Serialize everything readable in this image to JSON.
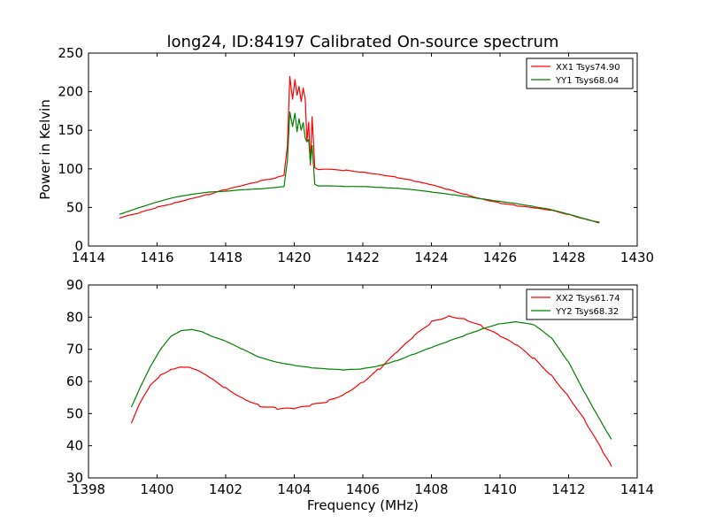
{
  "title": "long24, ID:84197 Calibrated On-source spectrum",
  "chart_data": [
    {
      "type": "line",
      "title": "long24, ID:84197 Calibrated On-source spectrum",
      "xlabel": "",
      "ylabel": "Power in Kelvin",
      "xlim": [
        1414,
        1430
      ],
      "ylim": [
        0,
        250
      ],
      "xticks": [
        1414,
        1416,
        1418,
        1420,
        1422,
        1424,
        1426,
        1428,
        1430
      ],
      "yticks": [
        0,
        50,
        100,
        150,
        200,
        250
      ],
      "grid": false,
      "legend": "top-right",
      "series": [
        {
          "name": "XX1 Tsys74.90",
          "color": "#ff0000",
          "x": [
            1414.9,
            1415.5,
            1416,
            1416.5,
            1417,
            1417.5,
            1418,
            1418.5,
            1419,
            1419.5,
            1419.7,
            1419.8,
            1419.87,
            1419.95,
            1420.02,
            1420.08,
            1420.14,
            1420.2,
            1420.26,
            1420.32,
            1420.37,
            1420.42,
            1420.47,
            1420.52,
            1420.6,
            1420.7,
            1421,
            1421.5,
            1422,
            1422.5,
            1423,
            1423.5,
            1424,
            1424.5,
            1425,
            1425.5,
            1426,
            1426.5,
            1427,
            1427.5,
            1428,
            1428.5,
            1428.9
          ],
          "y": [
            36,
            43,
            50,
            56,
            62,
            67,
            73,
            78,
            84,
            89,
            92,
            130,
            220,
            190,
            215,
            195,
            207,
            188,
            205,
            190,
            135,
            160,
            105,
            168,
            102,
            99,
            99,
            98,
            96,
            93,
            89,
            84,
            79,
            73,
            67,
            61,
            56,
            52,
            49,
            46,
            41,
            35,
            31
          ]
        },
        {
          "name": "YY1 Tsys68.04",
          "color": "#008000",
          "x": [
            1414.9,
            1415.5,
            1416,
            1416.5,
            1417,
            1417.5,
            1418,
            1418.5,
            1419,
            1419.5,
            1419.7,
            1419.8,
            1419.87,
            1419.95,
            1420.02,
            1420.08,
            1420.14,
            1420.2,
            1420.26,
            1420.32,
            1420.37,
            1420.42,
            1420.47,
            1420.52,
            1420.6,
            1420.7,
            1421,
            1421.5,
            1422,
            1422.5,
            1423,
            1423.5,
            1424,
            1424.5,
            1425,
            1425.5,
            1426,
            1426.5,
            1427,
            1427.5,
            1428,
            1428.5,
            1428.9
          ],
          "y": [
            41,
            50,
            57,
            63,
            67,
            70,
            71,
            73,
            74,
            76,
            77,
            110,
            174,
            155,
            172,
            148,
            165,
            150,
            160,
            140,
            135,
            138,
            108,
            130,
            80,
            78,
            78,
            77,
            77,
            76,
            75,
            73,
            70,
            67,
            64,
            61,
            58,
            55,
            51,
            47,
            41,
            35,
            30
          ]
        }
      ]
    },
    {
      "type": "line",
      "title": "",
      "xlabel": "Frequency (MHz)",
      "ylabel": "",
      "xlim": [
        1398,
        1414
      ],
      "ylim": [
        30,
        90
      ],
      "xticks": [
        1398,
        1400,
        1402,
        1404,
        1406,
        1408,
        1410,
        1412,
        1414
      ],
      "yticks": [
        30,
        40,
        50,
        60,
        70,
        80,
        90
      ],
      "grid": false,
      "legend": "top-right",
      "series": [
        {
          "name": "XX2 Tsys61.74",
          "color": "#ff0000",
          "x": [
            1399.25,
            1399.5,
            1399.8,
            1400.1,
            1400.4,
            1400.7,
            1401,
            1401.3,
            1401.6,
            1402,
            1402.5,
            1403,
            1403.5,
            1404,
            1404.5,
            1405,
            1405.5,
            1406,
            1406.5,
            1407,
            1407.5,
            1408,
            1408.5,
            1409,
            1409.5,
            1410,
            1410.5,
            1411,
            1411.5,
            1412,
            1412.5,
            1413,
            1413.25
          ],
          "y": [
            47,
            53,
            58.5,
            62,
            64,
            64.8,
            64.2,
            62.5,
            60.5,
            58,
            55,
            52.5,
            51.5,
            51.3,
            52.5,
            54,
            56.5,
            60,
            64,
            69,
            74,
            78.5,
            80.5,
            79.5,
            77,
            74,
            71,
            67,
            62,
            55.5,
            47.5,
            38,
            33.5
          ]
        },
        {
          "name": "YY2 Tsys68.32",
          "color": "#008000",
          "x": [
            1399.25,
            1399.5,
            1399.8,
            1400.1,
            1400.4,
            1400.7,
            1401,
            1401.3,
            1401.6,
            1402,
            1402.5,
            1403,
            1403.5,
            1404,
            1404.5,
            1405,
            1405.5,
            1406,
            1406.5,
            1407,
            1407.5,
            1408,
            1408.5,
            1409,
            1409.5,
            1410,
            1410.5,
            1411,
            1411.5,
            1412,
            1412.5,
            1413,
            1413.25
          ],
          "y": [
            52,
            58,
            64.5,
            70,
            74,
            75.8,
            76.2,
            75.5,
            74,
            72.5,
            70,
            67.5,
            66,
            65,
            64.2,
            63.8,
            63.6,
            64,
            65,
            66.5,
            68.5,
            70.5,
            72.5,
            74.5,
            76.5,
            78,
            78.5,
            77.5,
            73.5,
            66,
            56,
            46.5,
            42
          ]
        }
      ]
    }
  ]
}
